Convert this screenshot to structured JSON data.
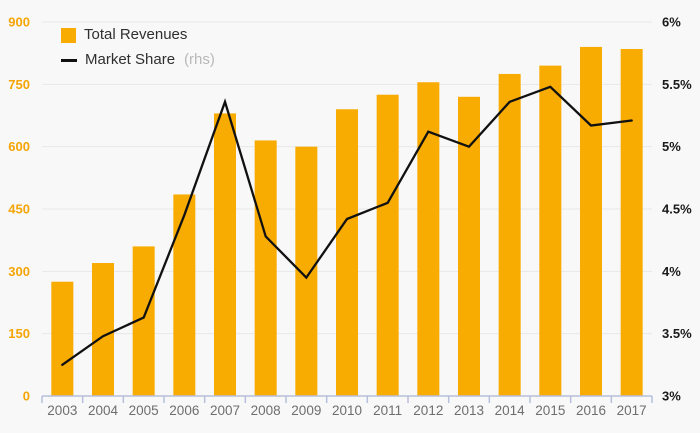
{
  "chart_data": {
    "type": "combo_bar_line",
    "title": "",
    "categories": [
      "2003",
      "2004",
      "2005",
      "2006",
      "2007",
      "2008",
      "2009",
      "2010",
      "2011",
      "2012",
      "2013",
      "2014",
      "2015",
      "2016",
      "2017"
    ],
    "series": [
      {
        "name": "Total Revenues",
        "chart_type": "bar",
        "axis": "left",
        "values": [
          275,
          320,
          360,
          485,
          680,
          615,
          600,
          690,
          725,
          755,
          720,
          775,
          795,
          840,
          835
        ]
      },
      {
        "name": "Market Share",
        "axis_note": "(rhs)",
        "chart_type": "line",
        "axis": "right",
        "values": [
          3.25,
          3.48,
          3.63,
          4.45,
          5.36,
          4.28,
          3.95,
          4.42,
          4.55,
          5.12,
          5.0,
          5.36,
          5.48,
          5.17,
          5.21
        ]
      }
    ],
    "left_axis": {
      "min": 0,
      "max": 900,
      "tick_values": [
        900,
        750,
        600,
        450,
        300,
        150,
        0
      ],
      "tick_labels": [
        "900",
        "750",
        "600",
        "450",
        "300",
        "150",
        "0"
      ]
    },
    "right_axis": {
      "min": 3,
      "max": 6,
      "tick_values": [
        6,
        5.5,
        5,
        4.5,
        4,
        3.5,
        3
      ],
      "tick_labels": [
        "6%",
        "5.5%",
        "5%",
        "4.5%",
        "4%",
        "3.5%",
        "3%"
      ]
    },
    "grid": true,
    "legend_position": "top-left"
  },
  "colors": {
    "bar": "#F8AB00",
    "line": "#111111",
    "left_axis_label": "#F5A504",
    "right_axis_label": "#1a1a1a",
    "x_label": "#6e6e6e",
    "axis_line": "#b7bfda",
    "gridline": "#e9e9e9",
    "background": "#f8f8f8",
    "legend_text": "#2f2f2f",
    "legend_note": "#b9b9b9"
  }
}
